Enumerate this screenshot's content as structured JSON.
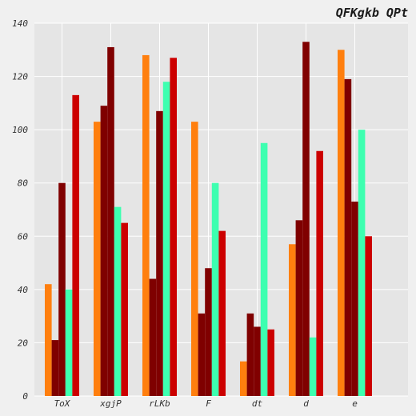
{
  "chart_data": {
    "type": "bar",
    "title": "QFKgkb QPt",
    "xlabel": "",
    "ylabel": "",
    "categories": [
      "ToX",
      "xgjP",
      "rLKb",
      "F",
      "dt",
      "d",
      "e"
    ],
    "ylim": [
      0,
      140
    ],
    "yticks": [
      0,
      20,
      40,
      60,
      80,
      100,
      120,
      140
    ],
    "grid": true,
    "legend": "none",
    "series": [
      {
        "color": "#ff7f0e",
        "values": [
          42,
          103,
          128,
          103,
          13,
          57,
          130
        ]
      },
      {
        "color": "#7f0000",
        "values": [
          21,
          109,
          44,
          31,
          31,
          66,
          119
        ]
      },
      {
        "color": "#800000",
        "values": [
          80,
          131,
          107,
          48,
          26,
          133,
          73
        ]
      },
      {
        "color": "#3dffb0",
        "values": [
          40,
          71,
          118,
          80,
          95,
          22,
          100
        ]
      },
      {
        "color": "#cc0000",
        "values": [
          113,
          65,
          127,
          62,
          25,
          92,
          60
        ]
      }
    ]
  },
  "style": {
    "plot_background": "#e5e5e5",
    "grid_color": "#ffffff",
    "page_background": "#f0f0f0"
  }
}
